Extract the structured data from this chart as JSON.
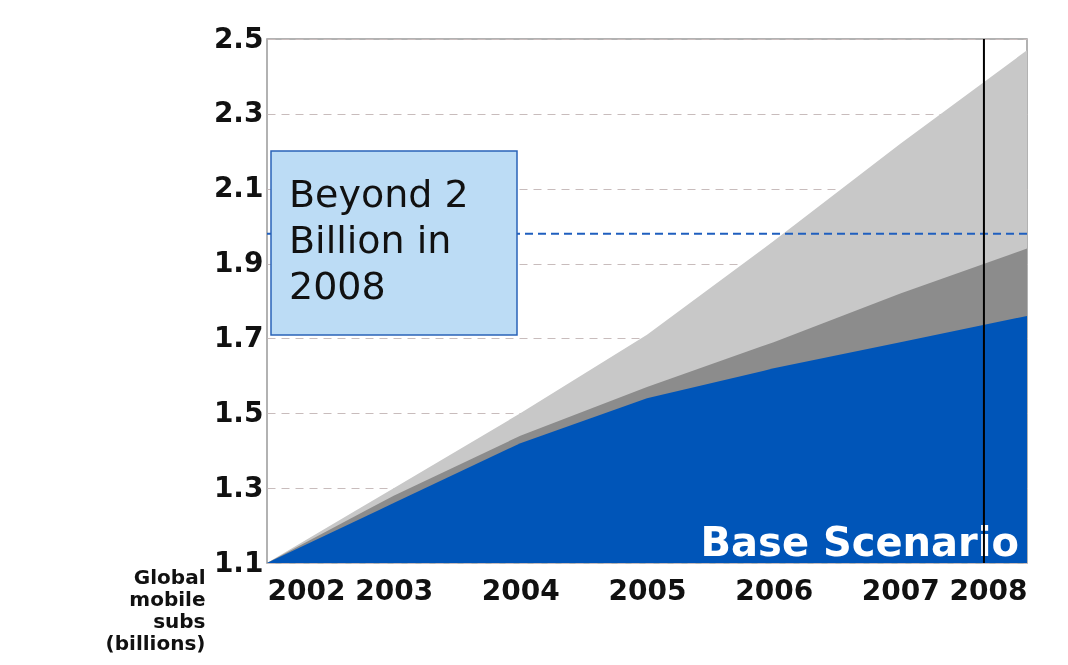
{
  "chart_data": {
    "type": "area",
    "ylabel": "Global mobile subs (billions)",
    "x": [
      2002,
      2003,
      2004,
      2005,
      2006,
      2007,
      2008
    ],
    "series": [
      {
        "color": "#c8c8c8",
        "values": [
          1.1,
          1.3,
          1.5,
          1.71,
          1.96,
          2.22,
          2.47
        ]
      },
      {
        "color": "#8c8c8c",
        "values": [
          1.1,
          1.28,
          1.44,
          1.57,
          1.69,
          1.82,
          1.94
        ]
      },
      {
        "name": "Base Scenario",
        "color": "#0055b8",
        "values": [
          1.1,
          1.26,
          1.42,
          1.54,
          1.62,
          1.69,
          1.76
        ]
      }
    ],
    "xlim": [
      2002,
      2008
    ],
    "xticks": [
      2002,
      2003,
      2004,
      2005,
      2006,
      2007,
      2008
    ],
    "ylim": [
      1.1,
      2.5
    ],
    "yticks": [
      1.1,
      1.3,
      1.5,
      1.7,
      1.9,
      2.1,
      2.3,
      2.5
    ],
    "grid": "y",
    "ref_lines": [
      {
        "axis": "y",
        "value": 1.98,
        "color": "#1f5fbf",
        "line_style": "dashed"
      },
      {
        "axis": "x",
        "value": 2007.66,
        "color": "#000000",
        "line_style": "solid"
      }
    ],
    "annotations": [
      "Beyond 2 Billion in 2008"
    ]
  }
}
